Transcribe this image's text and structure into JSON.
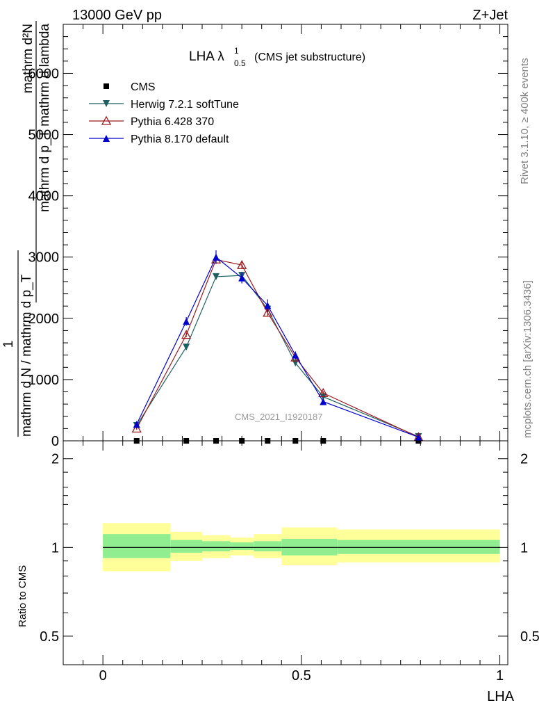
{
  "header": {
    "energy_label": "13000 GeV pp",
    "process_label": "Z+Jet"
  },
  "side_labels": {
    "rivet": "Rivet 3.1.10, ≥ 400k events",
    "mcplots": "mcplots.cern.ch [arXiv:1306.3436]"
  },
  "chart_data": [
    {
      "type": "line",
      "panel": "main",
      "title": "LHA λ",
      "title_sup": "1",
      "title_sub": "0.5",
      "subtitle": "(CMS jet substructure)",
      "watermark": "CMS_2021_I1920187",
      "ylabel_numerator": "mathrm d²N",
      "ylabel_denominator": "mathrm d p_T mathrm d lambda",
      "ylabel_prefactor_top": "1",
      "ylabel_prefactor_bottom": "mathrm d N / mathrm d p_T",
      "xlim": [
        -0.1,
        1.02
      ],
      "ylim": [
        0,
        6800
      ],
      "yticks": [
        0,
        1000,
        2000,
        3000,
        4000,
        5000,
        6000
      ],
      "ytick_labels": [
        "0",
        "1000",
        "2000",
        "3000",
        "4000",
        "5000",
        "6000"
      ],
      "legend_position": "top-left",
      "series": [
        {
          "name": "CMS",
          "color": "#000000",
          "marker": "square",
          "x": [
            0.085,
            0.21,
            0.285,
            0.35,
            0.415,
            0.485,
            0.555,
            0.795
          ],
          "y": [
            0,
            0,
            0,
            0,
            0,
            0,
            0,
            0
          ],
          "err": [
            0,
            0,
            0,
            0,
            0,
            0,
            0,
            0
          ]
        },
        {
          "name": "Herwig 7.2.1 softTune",
          "color": "#1f5f62",
          "marker": "triangle-down",
          "x": [
            0.085,
            0.21,
            0.285,
            0.35,
            0.415,
            0.485,
            0.555,
            0.795
          ],
          "y": [
            250,
            1530,
            2680,
            2700,
            2150,
            1270,
            720,
            70
          ],
          "err": [
            20,
            40,
            50,
            60,
            50,
            40,
            30,
            10
          ]
        },
        {
          "name": "Pythia 6.428 370",
          "color": "#9b1b1f",
          "marker": "triangle-up-open",
          "x": [
            0.085,
            0.21,
            0.285,
            0.35,
            0.415,
            0.485,
            0.555,
            0.795
          ],
          "y": [
            200,
            1730,
            2960,
            2870,
            2090,
            1360,
            780,
            60
          ],
          "err": [
            20,
            40,
            50,
            50,
            50,
            40,
            30,
            10
          ]
        },
        {
          "name": "Pythia 8.170 default",
          "color": "#0000cc",
          "marker": "triangle-up",
          "x": [
            0.085,
            0.21,
            0.285,
            0.35,
            0.415,
            0.485,
            0.555,
            0.795
          ],
          "y": [
            270,
            1950,
            3000,
            2660,
            2210,
            1400,
            640,
            60
          ],
          "err": [
            30,
            70,
            110,
            90,
            100,
            60,
            50,
            10
          ]
        }
      ]
    },
    {
      "type": "area",
      "panel": "ratio",
      "ylabel": "Ratio to CMS",
      "xlabel": "LHA",
      "xlim": [
        -0.1,
        1.02
      ],
      "ylim": [
        0.4,
        2.3
      ],
      "xticks": [
        0,
        0.5,
        1
      ],
      "xtick_labels": [
        "0",
        "0.5",
        "1"
      ],
      "yticks": [
        0.5,
        1,
        2
      ],
      "ytick_labels": [
        "0.5",
        "1",
        "2"
      ],
      "reference_line": 1.0,
      "bins": [
        {
          "x0": 0.0,
          "x1": 0.17,
          "inner": [
            0.92,
            1.11
          ],
          "outer": [
            0.83,
            1.21
          ]
        },
        {
          "x0": 0.17,
          "x1": 0.25,
          "inner": [
            0.96,
            1.06
          ],
          "outer": [
            0.9,
            1.13
          ]
        },
        {
          "x0": 0.25,
          "x1": 0.32,
          "inner": [
            0.97,
            1.05
          ],
          "outer": [
            0.92,
            1.1
          ]
        },
        {
          "x0": 0.32,
          "x1": 0.38,
          "inner": [
            0.98,
            1.04
          ],
          "outer": [
            0.94,
            1.08
          ]
        },
        {
          "x0": 0.38,
          "x1": 0.45,
          "inner": [
            0.97,
            1.05
          ],
          "outer": [
            0.92,
            1.11
          ]
        },
        {
          "x0": 0.45,
          "x1": 0.59,
          "inner": [
            0.94,
            1.07
          ],
          "outer": [
            0.87,
            1.17
          ]
        },
        {
          "x0": 0.59,
          "x1": 1.0,
          "inner": [
            0.95,
            1.06
          ],
          "outer": [
            0.89,
            1.15
          ]
        }
      ]
    }
  ],
  "colors": {
    "band_inner": "#90ee90",
    "band_outer": "#ffff99",
    "axis": "#000000",
    "side_text": "#808080",
    "watermark": "#999999"
  }
}
